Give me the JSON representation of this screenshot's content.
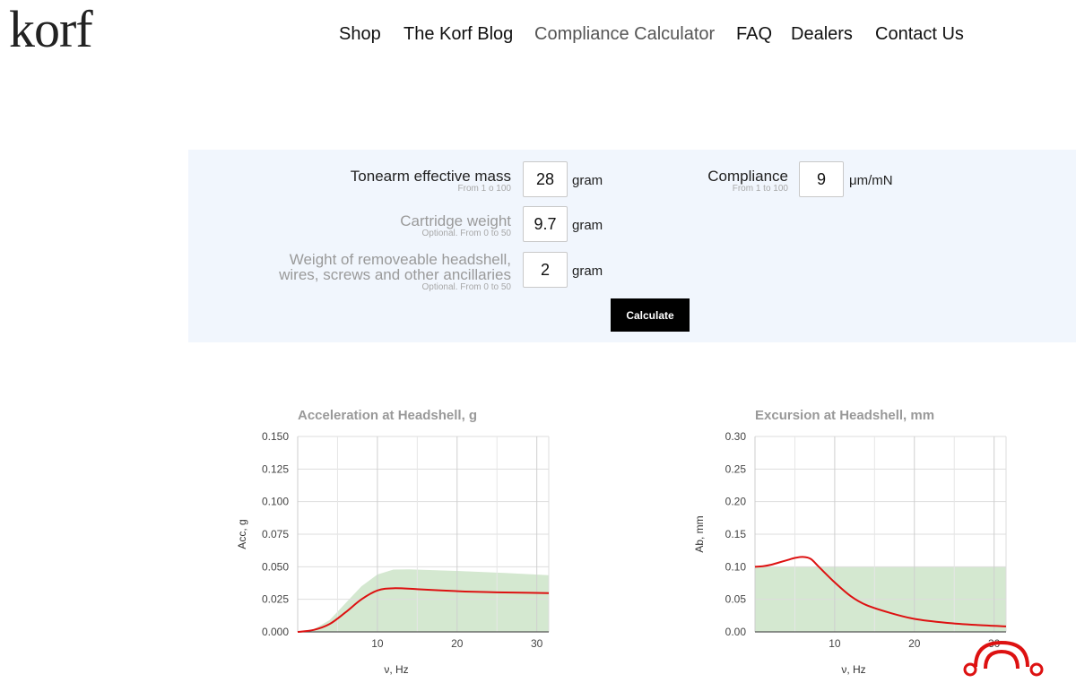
{
  "brand": {
    "logo_text": "korf"
  },
  "nav": {
    "items": [
      {
        "label": "Shop",
        "active": false
      },
      {
        "label": "The Korf Blog",
        "active": false
      },
      {
        "label": "Compliance Calculator",
        "active": true
      },
      {
        "label": "FAQ",
        "active": false
      },
      {
        "label": "Dealers",
        "active": false
      },
      {
        "label": "Contact Us",
        "active": false
      }
    ]
  },
  "form": {
    "tonearm_mass": {
      "label": "Tonearm effective mass",
      "hint": "From 1 o 100",
      "value": "28",
      "unit": "gram"
    },
    "compliance": {
      "label": "Compliance",
      "hint": "From 1 to 100",
      "value": "9",
      "unit": "μm/mN"
    },
    "cartridge_weight": {
      "label": "Cartridge weight",
      "hint": "Optional. From 0 to 50",
      "value": "9.7",
      "unit": "gram"
    },
    "headshell_weight": {
      "label_line1": "Weight of removeable headshell,",
      "label_line2": "wires, screws and other ancillaries",
      "hint": "Optional. From 0 to 50",
      "value": "2",
      "unit": "gram"
    },
    "calculate_label": "Calculate"
  },
  "colors": {
    "curve": "#dd1111",
    "band": "#d4e8d0",
    "grid": "#dddddd",
    "title": "#999999",
    "badge": "#dd1111"
  },
  "chart_data": [
    {
      "type": "area",
      "title": "Acceleration at Headshell, g",
      "xlabel": "ν, Hz",
      "ylabel": "Acc, g",
      "xlim": [
        0,
        31.5
      ],
      "ylim": [
        0,
        0.15
      ],
      "xticks": [
        10,
        20,
        30
      ],
      "yticks": [
        "0.000",
        "0.025",
        "0.050",
        "0.075",
        "0.100",
        "0.125",
        "0.150"
      ],
      "grid": true,
      "series": [
        {
          "kind": "line",
          "x": [
            0,
            2,
            4,
            6,
            8,
            10,
            12,
            15,
            18,
            21,
            24,
            27,
            31.5
          ],
          "y": [
            0,
            0.0015,
            0.006,
            0.015,
            0.025,
            0.0318,
            0.0335,
            0.0328,
            0.0318,
            0.031,
            0.0305,
            0.0302,
            0.0298
          ]
        },
        {
          "kind": "band",
          "x": [
            0,
            2,
            4,
            6,
            8,
            10,
            12,
            14,
            20,
            26,
            31.5
          ],
          "y": [
            0,
            0.002,
            0.009,
            0.022,
            0.035,
            0.044,
            0.0478,
            0.048,
            0.0468,
            0.0452,
            0.0435
          ]
        }
      ]
    },
    {
      "type": "area",
      "title": "Excursion at Headshell, mm",
      "xlabel": "ν, Hz",
      "ylabel": "Ab, mm",
      "xlim": [
        0,
        31.5
      ],
      "ylim": [
        0,
        0.3
      ],
      "xticks": [
        10,
        20,
        30
      ],
      "yticks": [
        "0.00",
        "0.05",
        "0.10",
        "0.15",
        "0.20",
        "0.25",
        "0.30"
      ],
      "grid": true,
      "series": [
        {
          "kind": "line",
          "x": [
            0,
            1,
            2,
            3,
            4,
            5,
            6,
            7,
            8,
            10,
            12,
            14,
            17,
            20,
            24,
            28,
            31.5
          ],
          "y": [
            0.1,
            0.1008,
            0.103,
            0.1065,
            0.11,
            0.1135,
            0.115,
            0.112,
            0.1,
            0.076,
            0.055,
            0.041,
            0.029,
            0.02,
            0.014,
            0.0105,
            0.0085
          ]
        },
        {
          "kind": "band",
          "x": [
            0,
            31.5
          ],
          "y": [
            0.1,
            0.1
          ]
        }
      ]
    }
  ]
}
